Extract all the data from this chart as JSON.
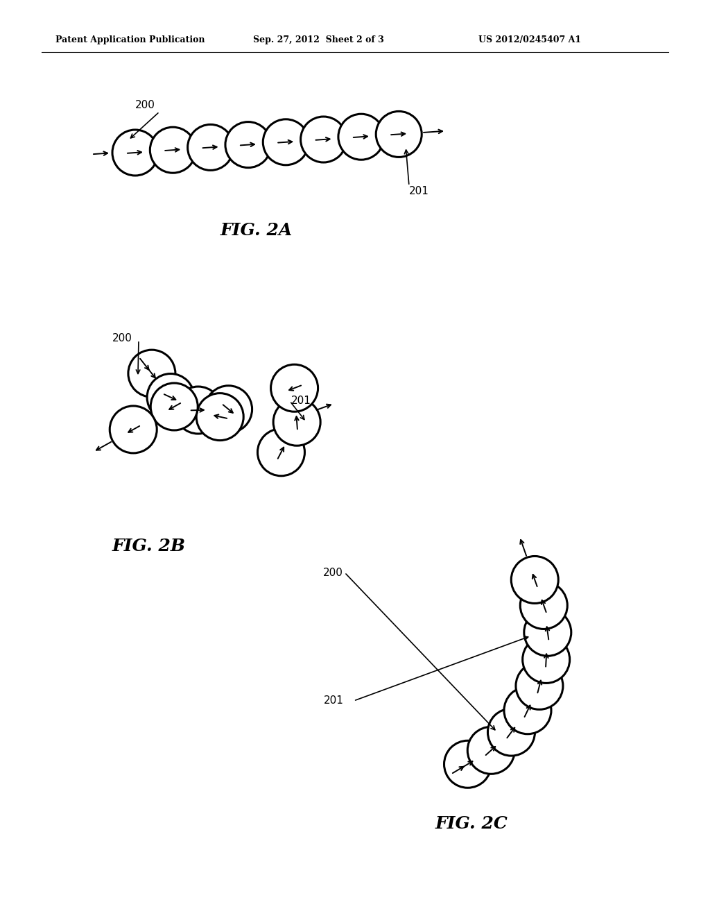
{
  "header_left": "Patent Application Publication",
  "header_center": "Sep. 27, 2012  Sheet 2 of 3",
  "header_right": "US 2012/0245407 A1",
  "fig2a_label": "FIG. 2A",
  "fig2b_label": "FIG. 2B",
  "fig2c_label": "FIG. 2C",
  "bg_color": "#ffffff"
}
